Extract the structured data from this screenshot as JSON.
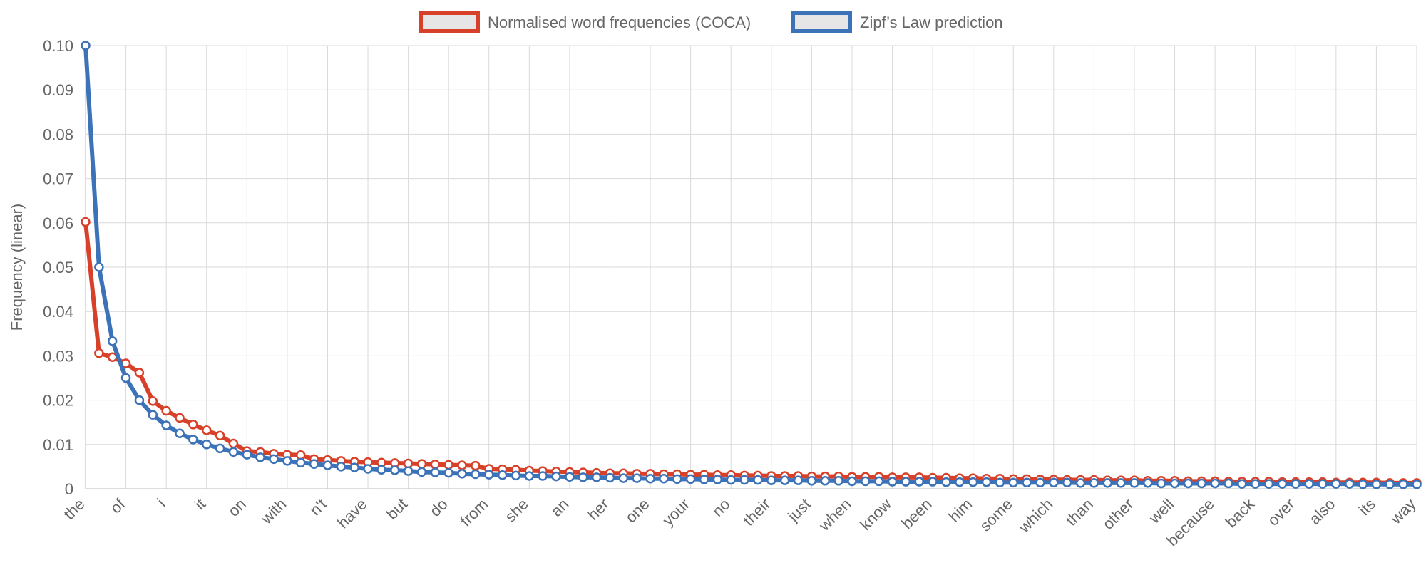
{
  "chart_data": {
    "type": "line",
    "xlabel": "",
    "ylabel": "Frequency (linear)",
    "ylim": [
      0,
      0.1
    ],
    "yticks": [
      "0",
      "0.01",
      "0.02",
      "0.03",
      "0.04",
      "0.05",
      "0.06",
      "0.07",
      "0.08",
      "0.09",
      "0.10"
    ],
    "grid": true,
    "legend_position": "top-center",
    "x_tick_labels": [
      "the",
      "of",
      "i",
      "it",
      "on",
      "with",
      "n't",
      "have",
      "but",
      "do",
      "from",
      "she",
      "an",
      "her",
      "one",
      "your",
      "no",
      "their",
      "just",
      "when",
      "know",
      "been",
      "him",
      "some",
      "which",
      "than",
      "other",
      "well",
      "because",
      "back",
      "over",
      "also",
      "its",
      "way"
    ],
    "series": [
      {
        "name": "Normalised word frequencies (COCA)",
        "color": "#d7412a",
        "values": [
          0.0602,
          0.0306,
          0.0297,
          0.0283,
          0.0262,
          0.0198,
          0.0176,
          0.016,
          0.0145,
          0.0132,
          0.012,
          0.0102,
          0.0085,
          0.0083,
          0.0079,
          0.0077,
          0.0076,
          0.0067,
          0.0065,
          0.0063,
          0.0061,
          0.006,
          0.0059,
          0.0058,
          0.0057,
          0.0056,
          0.0055,
          0.0054,
          0.0053,
          0.0052,
          0.0045,
          0.0044,
          0.0043,
          0.0041,
          0.004,
          0.0039,
          0.0038,
          0.0037,
          0.0036,
          0.0035,
          0.0035,
          0.0034,
          0.0034,
          0.0033,
          0.0033,
          0.0032,
          0.0032,
          0.0031,
          0.0031,
          0.003,
          0.003,
          0.0029,
          0.0029,
          0.0029,
          0.0028,
          0.0028,
          0.0028,
          0.0027,
          0.0027,
          0.0027,
          0.0026,
          0.0026,
          0.0026,
          0.0025,
          0.0025,
          0.0024,
          0.0024,
          0.0023,
          0.0023,
          0.0022,
          0.0022,
          0.0021,
          0.0021,
          0.002,
          0.002,
          0.002,
          0.0019,
          0.0019,
          0.0019,
          0.0018,
          0.0018,
          0.0018,
          0.0017,
          0.0017,
          0.0017,
          0.0016,
          0.0016,
          0.0016,
          0.0016,
          0.0015,
          0.0015,
          0.0015,
          0.0015,
          0.0014,
          0.0014,
          0.0014,
          0.0014,
          0.0013,
          0.0013,
          0.0013
        ]
      },
      {
        "name": "Zipf’s Law prediction",
        "color": "#3c73b8",
        "values": [
          0.1,
          0.05,
          0.0333,
          0.025,
          0.02,
          0.0167,
          0.0143,
          0.0125,
          0.0111,
          0.01,
          0.0091,
          0.0083,
          0.0077,
          0.0071,
          0.0067,
          0.0063,
          0.0059,
          0.0056,
          0.0053,
          0.005,
          0.0048,
          0.0045,
          0.0043,
          0.0042,
          0.004,
          0.0038,
          0.0037,
          0.0036,
          0.0034,
          0.0033,
          0.0032,
          0.0031,
          0.003,
          0.0029,
          0.0029,
          0.0028,
          0.0027,
          0.0026,
          0.0026,
          0.0025,
          0.0024,
          0.0024,
          0.0023,
          0.0023,
          0.0022,
          0.0022,
          0.0021,
          0.0021,
          0.002,
          0.002,
          0.002,
          0.0019,
          0.0019,
          0.0019,
          0.0018,
          0.0018,
          0.0018,
          0.0017,
          0.0017,
          0.0017,
          0.0016,
          0.0016,
          0.0016,
          0.0016,
          0.0015,
          0.0015,
          0.0015,
          0.0015,
          0.0014,
          0.0014,
          0.0014,
          0.0014,
          0.0014,
          0.0014,
          0.0013,
          0.0013,
          0.0013,
          0.0013,
          0.0013,
          0.0013,
          0.0012,
          0.0012,
          0.0012,
          0.0012,
          0.0012,
          0.0012,
          0.0011,
          0.0011,
          0.0011,
          0.0011,
          0.0011,
          0.0011,
          0.0011,
          0.0011,
          0.0011,
          0.001,
          0.001,
          0.001,
          0.001,
          0.001
        ]
      }
    ]
  }
}
